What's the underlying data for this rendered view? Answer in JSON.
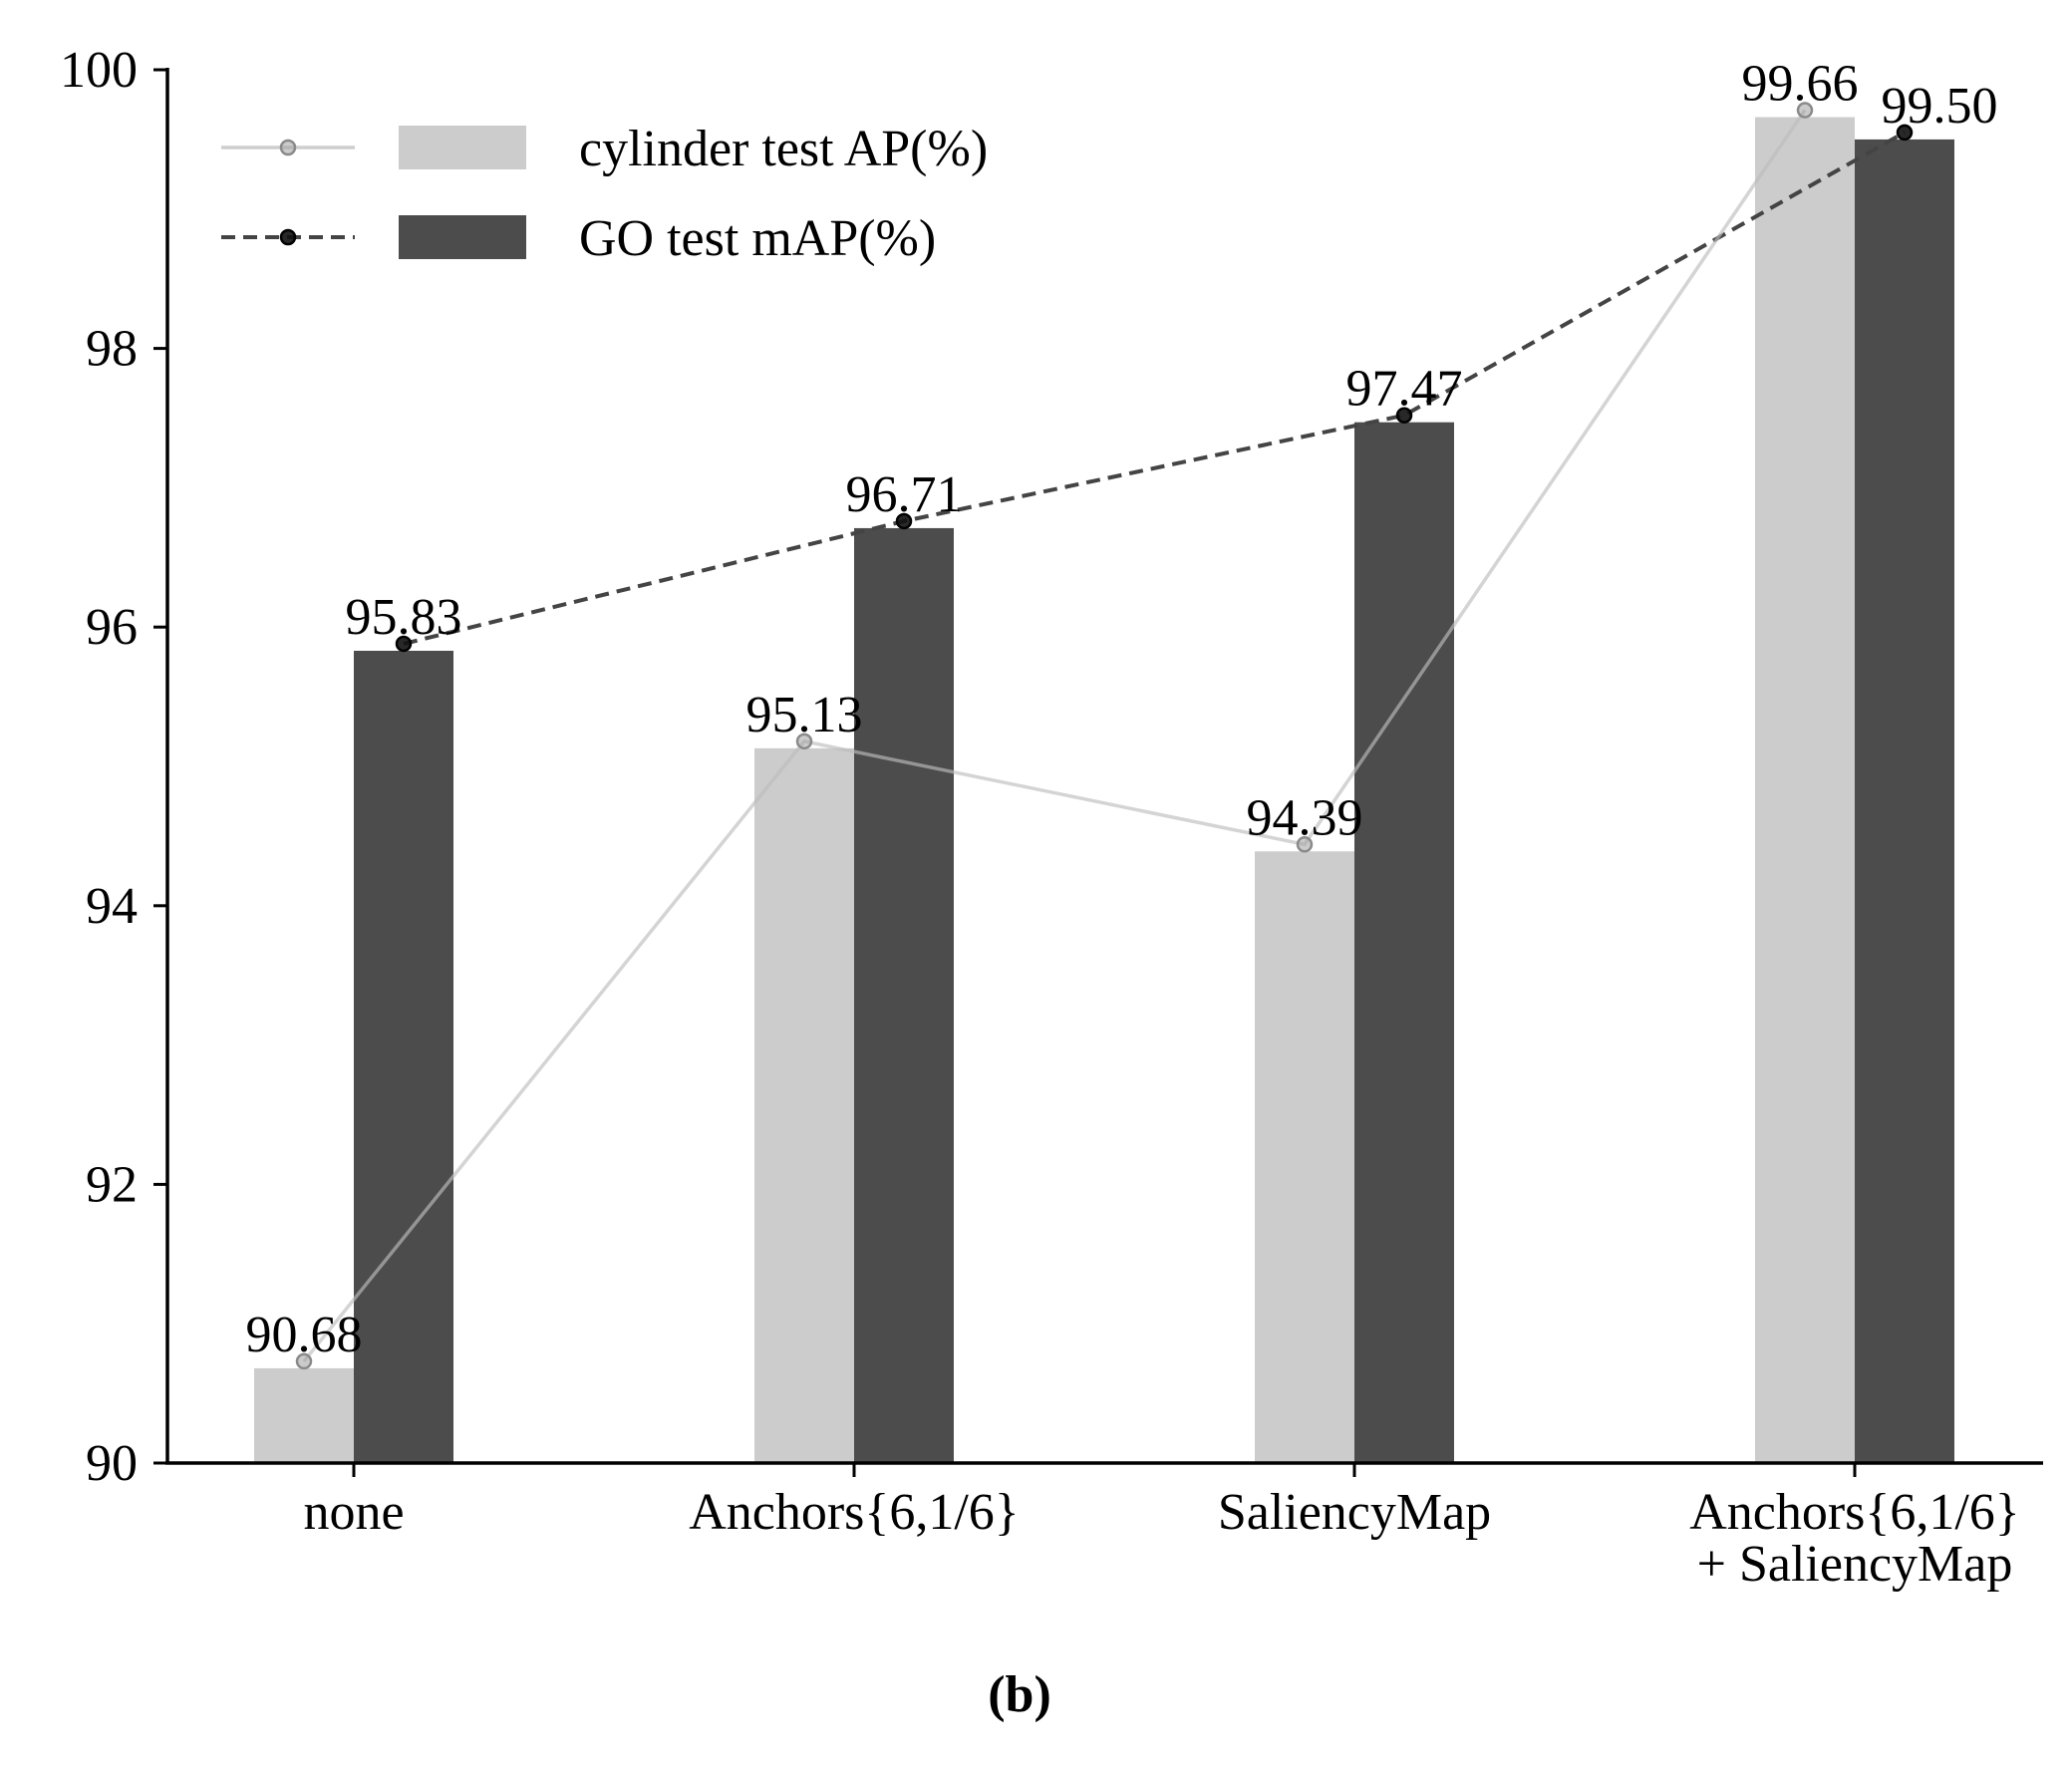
{
  "chart_data": {
    "type": "bar",
    "categories": [
      [
        "none"
      ],
      [
        "Anchors{6,1/6}"
      ],
      [
        "SaliencyMap"
      ],
      [
        "Anchors{6,1/6}",
        "+ SaliencyMap"
      ]
    ],
    "series": [
      {
        "name": "cylinder test AP(%)",
        "values": [
          90.68,
          95.13,
          94.39,
          99.66
        ],
        "labels": [
          "90.68",
          "95.13",
          "94.39",
          "99.66"
        ],
        "bar_color": "#cccccc",
        "line_color": "#bdbdbd",
        "line_style": "solid",
        "marker_color": "#a0a0a0"
      },
      {
        "name": "GO test mAP(%)",
        "values": [
          95.83,
          96.71,
          97.47,
          99.5
        ],
        "labels": [
          "95.83",
          "96.71",
          "97.47",
          "99.50"
        ],
        "bar_color": "#4c4c4c",
        "line_color": "#444444",
        "line_style": "dashed",
        "marker_color": "#111111"
      }
    ],
    "ylim": [
      90,
      100
    ],
    "yticks": [
      "90",
      "92",
      "94",
      "96",
      "98",
      "100"
    ],
    "grid": false,
    "legend": "top-left",
    "panel_label": "(b)"
  }
}
